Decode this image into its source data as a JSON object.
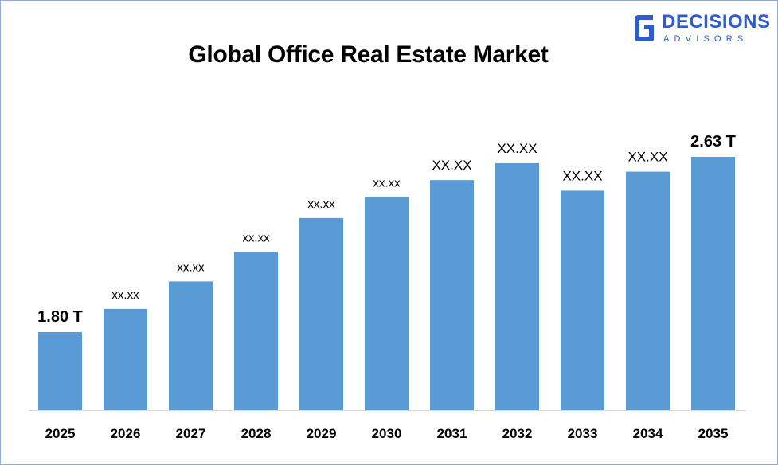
{
  "logo": {
    "name": "DECISIONS",
    "tagline": "ADVISORS",
    "icon": "decisions-advisors-logo-icon",
    "color": "#2f5bd0"
  },
  "chart_data": {
    "type": "bar",
    "title": "Global Office Real Estate Market",
    "xlabel": "",
    "ylabel": "",
    "categories": [
      "2025",
      "2026",
      "2027",
      "2028",
      "2029",
      "2030",
      "2031",
      "2032",
      "2033",
      "2034",
      "2035"
    ],
    "values": [
      1.8,
      1.91,
      2.04,
      2.18,
      2.34,
      2.44,
      2.52,
      2.6,
      2.47,
      2.56,
      2.63
    ],
    "value_labels": [
      "1.80 T",
      "xx.xx",
      "xx.xx",
      "xx.xx",
      "xx.xx",
      "xx.xx",
      "XX.XX",
      "XX.XX",
      "XX.XX",
      "XX.XX",
      "2.63 T"
    ],
    "bar_color": "#5b9bd5",
    "grid": false,
    "legend": "none"
  }
}
